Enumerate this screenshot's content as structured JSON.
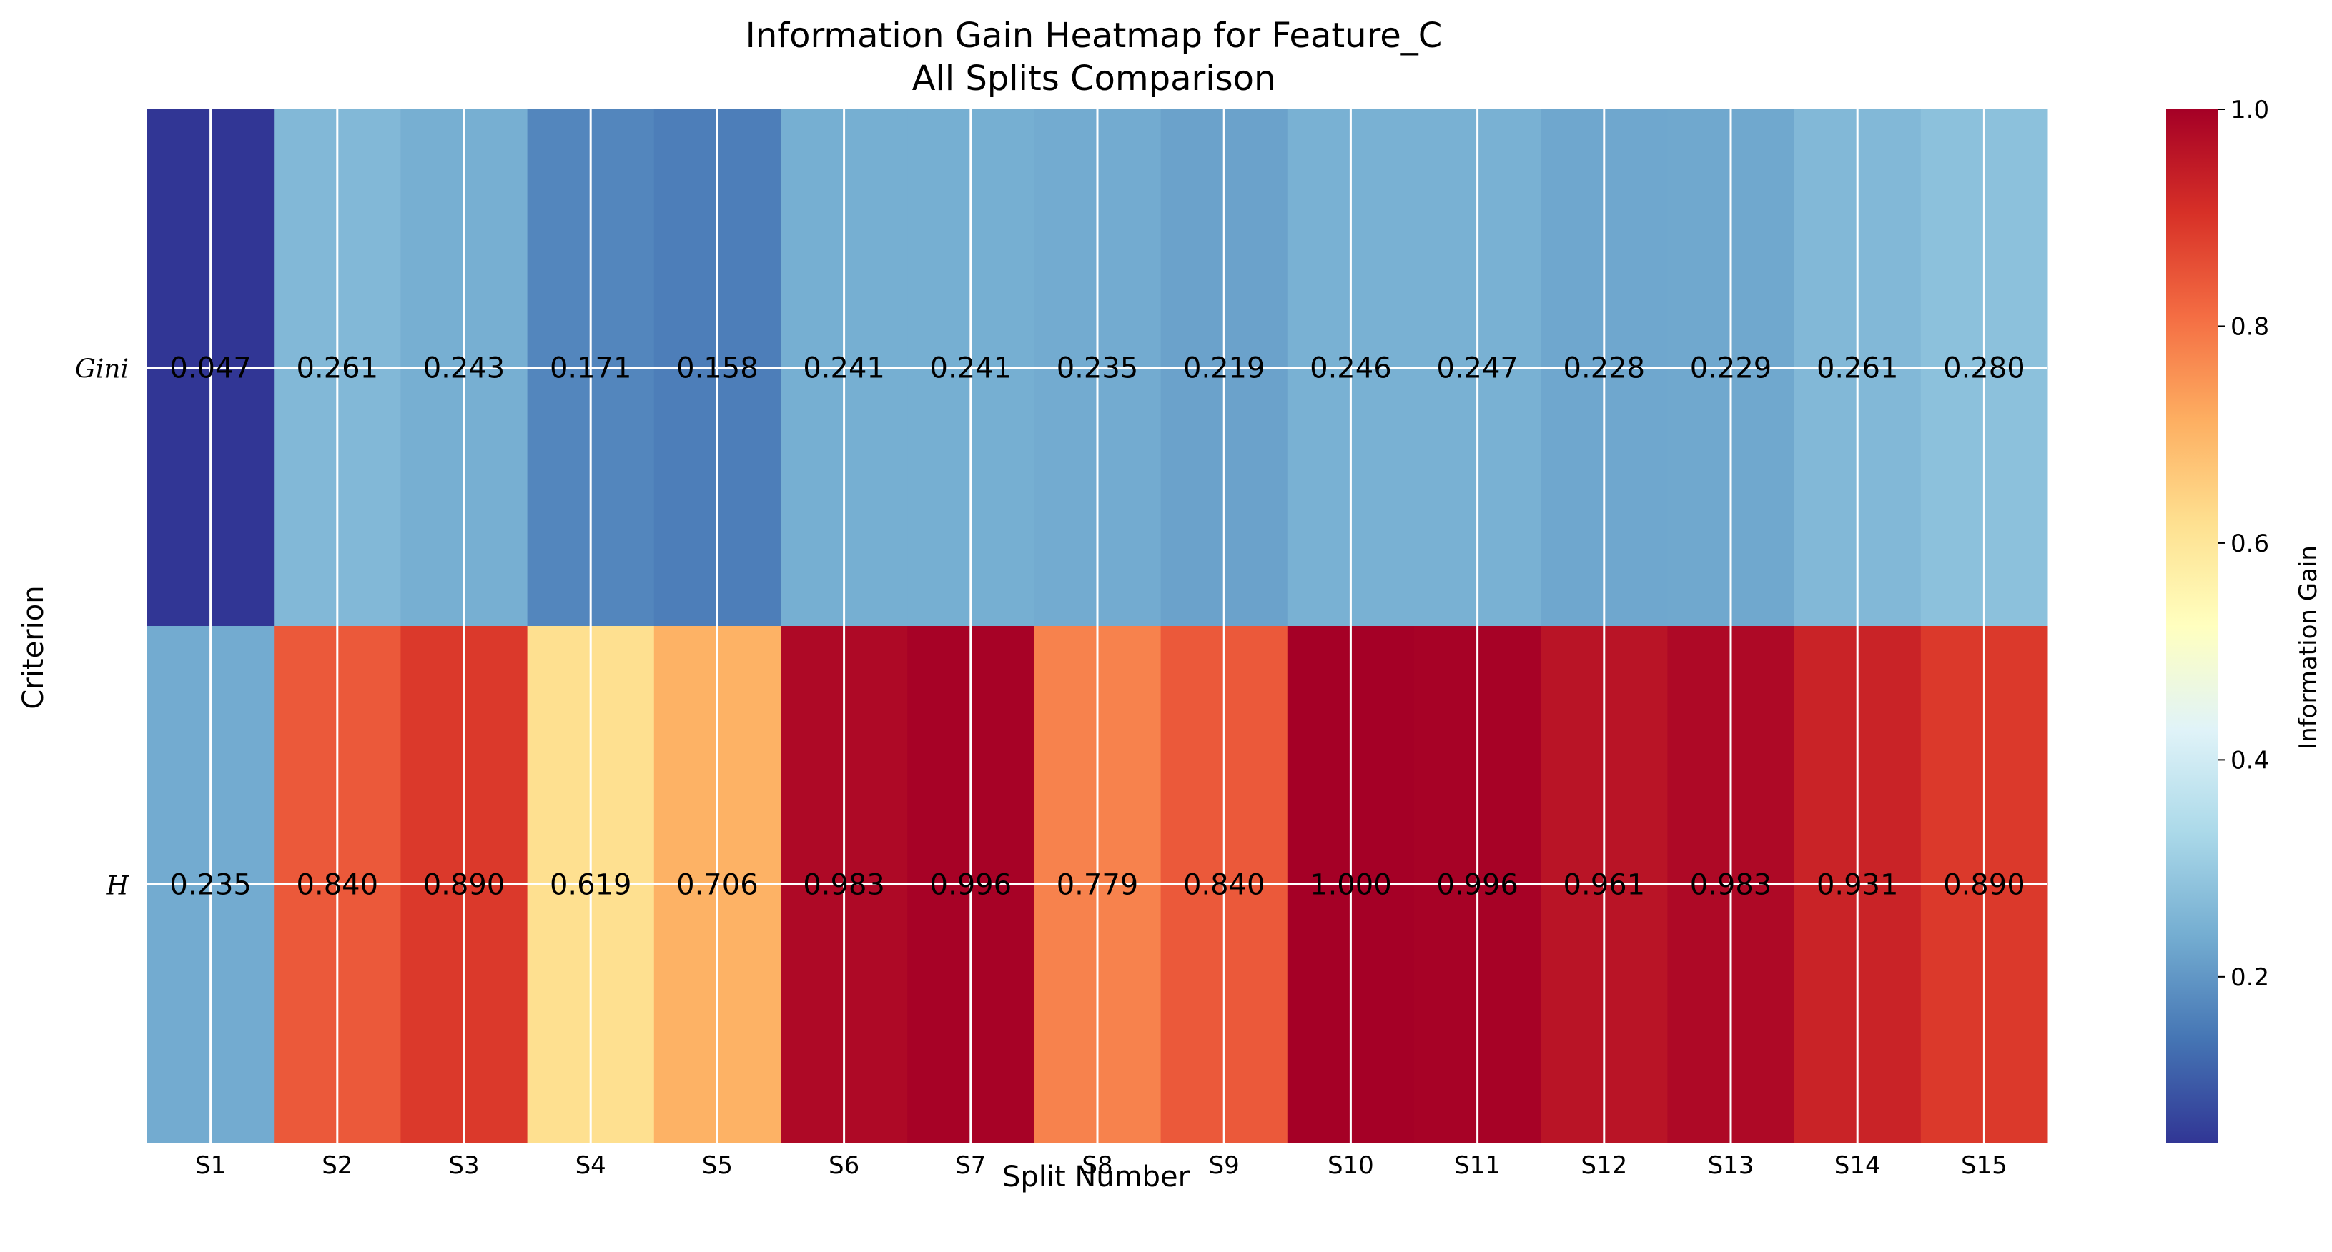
{
  "chart_data": {
    "type": "heatmap",
    "title": "Information Gain Heatmap for Feature_C",
    "subtitle": "All Splits Comparison",
    "xlabel": "Split Number",
    "ylabel": "Criterion",
    "x_categories": [
      "S1",
      "S2",
      "S3",
      "S4",
      "S5",
      "S6",
      "S7",
      "S8",
      "S9",
      "S10",
      "S11",
      "S12",
      "S13",
      "S14",
      "S15"
    ],
    "y_categories": [
      "Gini",
      "H"
    ],
    "values": [
      [
        0.047,
        0.261,
        0.243,
        0.171,
        0.158,
        0.241,
        0.241,
        0.235,
        0.219,
        0.246,
        0.247,
        0.228,
        0.229,
        0.261,
        0.28
      ],
      [
        0.235,
        0.84,
        0.89,
        0.619,
        0.706,
        0.983,
        0.996,
        0.779,
        0.84,
        1.0,
        0.996,
        0.961,
        0.983,
        0.931,
        0.89
      ]
    ],
    "value_labels": [
      [
        "0.047",
        "0.261",
        "0.243",
        "0.171",
        "0.158",
        "0.241",
        "0.241",
        "0.235",
        "0.219",
        "0.246",
        "0.247",
        "0.228",
        "0.229",
        "0.261",
        "0.280"
      ],
      [
        "0.235",
        "0.840",
        "0.890",
        "0.619",
        "0.706",
        "0.983",
        "0.996",
        "0.779",
        "0.840",
        "1.000",
        "0.996",
        "0.961",
        "0.983",
        "0.931",
        "0.890"
      ]
    ],
    "colorbar": {
      "label": "Information Gain",
      "colormap": "RdYlBu_r",
      "vmin": 0.047,
      "vmax": 1.0,
      "ticks": [
        0.2,
        0.4,
        0.6,
        0.8,
        1.0
      ],
      "tick_labels": [
        "0.2",
        "0.4",
        "0.6",
        "0.8",
        "1.0"
      ]
    },
    "grid": true,
    "colors": [
      "#313695",
      "#4575b4",
      "#74add1",
      "#abd9e9",
      "#e0f3f8",
      "#ffffbf",
      "#fee090",
      "#fdae61",
      "#f46d43",
      "#d73027",
      "#a50026"
    ]
  }
}
